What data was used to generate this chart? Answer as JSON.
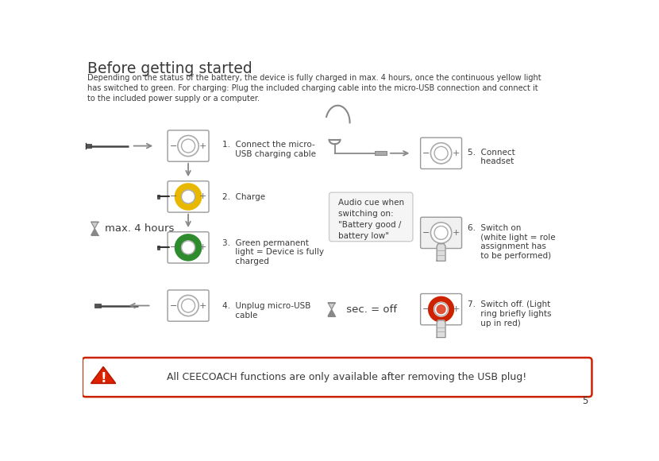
{
  "title": "Before getting started",
  "subtitle": "Depending on the status of the battery, the device is fully charged in max. 4 hours, once the continuous yellow light\nhas switched to green. For charging: Plug the included charging cable into the micro-USB connection and connect it\nto the included power supply or a computer.",
  "bg_color": "#ffffff",
  "text_color": "#3a3a3a",
  "step1_label": "1.  Connect the micro-\n     USB charging cable",
  "step2_label": "2.  Charge",
  "step3_label": "3.  Green permanent\n     light = Device is fully\n     charged",
  "step4_label": "4.  Unplug micro-USB\n     cable",
  "step5_label": "5.  Connect\n     headset",
  "step6_label": "6.  Switch on\n     (white light = role\n     assignment has\n     to be performed)",
  "step7_label": "7.  Switch off. (Light\n     ring briefly lights\n     up in red)",
  "audio_cue": "Audio cue when\nswitching on:\n\"Battery good /\nbattery low\"",
  "max_hours": "max. 4 hours",
  "sec_off": " sec. = off",
  "warning_text": "All CEECOACH functions are only available after removing the USB plug!",
  "page_num": "5",
  "yellow_ring": "#e8b800",
  "green_ring": "#2e8b2e",
  "red_ring": "#cc2200",
  "red_center": "#dd3311",
  "arrow_color": "#888888",
  "warning_border": "#cc2200",
  "warning_fill": "#ffffff"
}
